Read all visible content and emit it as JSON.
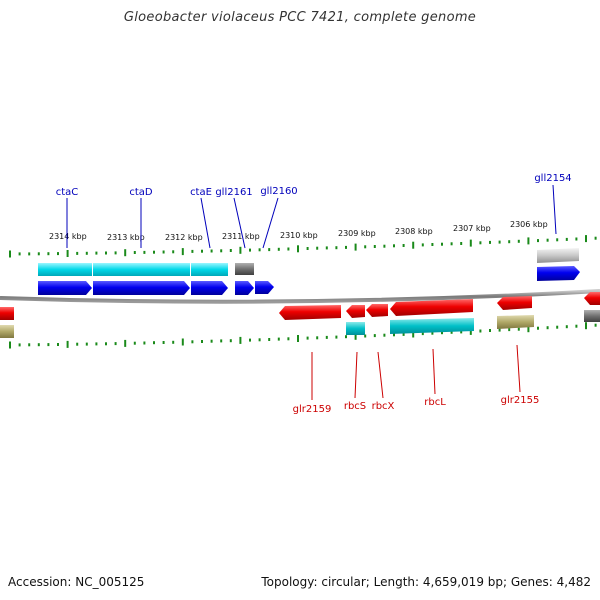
{
  "title": "Gloeobacter violaceus PCC 7421, complete genome",
  "footer": {
    "accession": "Accession: NC_005125",
    "summary": "Topology: circular; Length: 4,659,019 bp; Genes: 4,482"
  },
  "colors": {
    "forward_gene": "#0000ee",
    "forward_cds_band": "#00d8e8",
    "reverse_gene": "#ee0000",
    "reverse_cds_band": "#00c8c8",
    "trna_band": "#a8a060",
    "pseudo": "#707070",
    "ruler_tick": "#1a8a1a",
    "backbone": "#808080",
    "forward_label": "#0000bb",
    "reverse_label": "#cc0000"
  },
  "ruler_labels": [
    "2314 kbp",
    "2313 kbp",
    "2312 kbp",
    "2311 kbp",
    "2310 kbp",
    "2309 kbp",
    "2308 kbp",
    "2307 kbp",
    "2306 kbp"
  ],
  "forward_genes": [
    {
      "label": "ctaC",
      "type": "cds"
    },
    {
      "label": "ctaD",
      "type": "cds"
    },
    {
      "label": "ctaE",
      "type": "cds"
    },
    {
      "label": "gll2161",
      "type": "pseudo"
    },
    {
      "label": "gll2160",
      "type": "cds"
    },
    {
      "label": "gll2154",
      "type": "cds"
    }
  ],
  "reverse_genes": [
    {
      "label": "glr2159",
      "type": "cds"
    },
    {
      "label": "rbcS",
      "type": "cds"
    },
    {
      "label": "rbcX",
      "type": "cds"
    },
    {
      "label": "rbcL",
      "type": "cds"
    },
    {
      "label": "glr2155",
      "type": "cds"
    }
  ]
}
